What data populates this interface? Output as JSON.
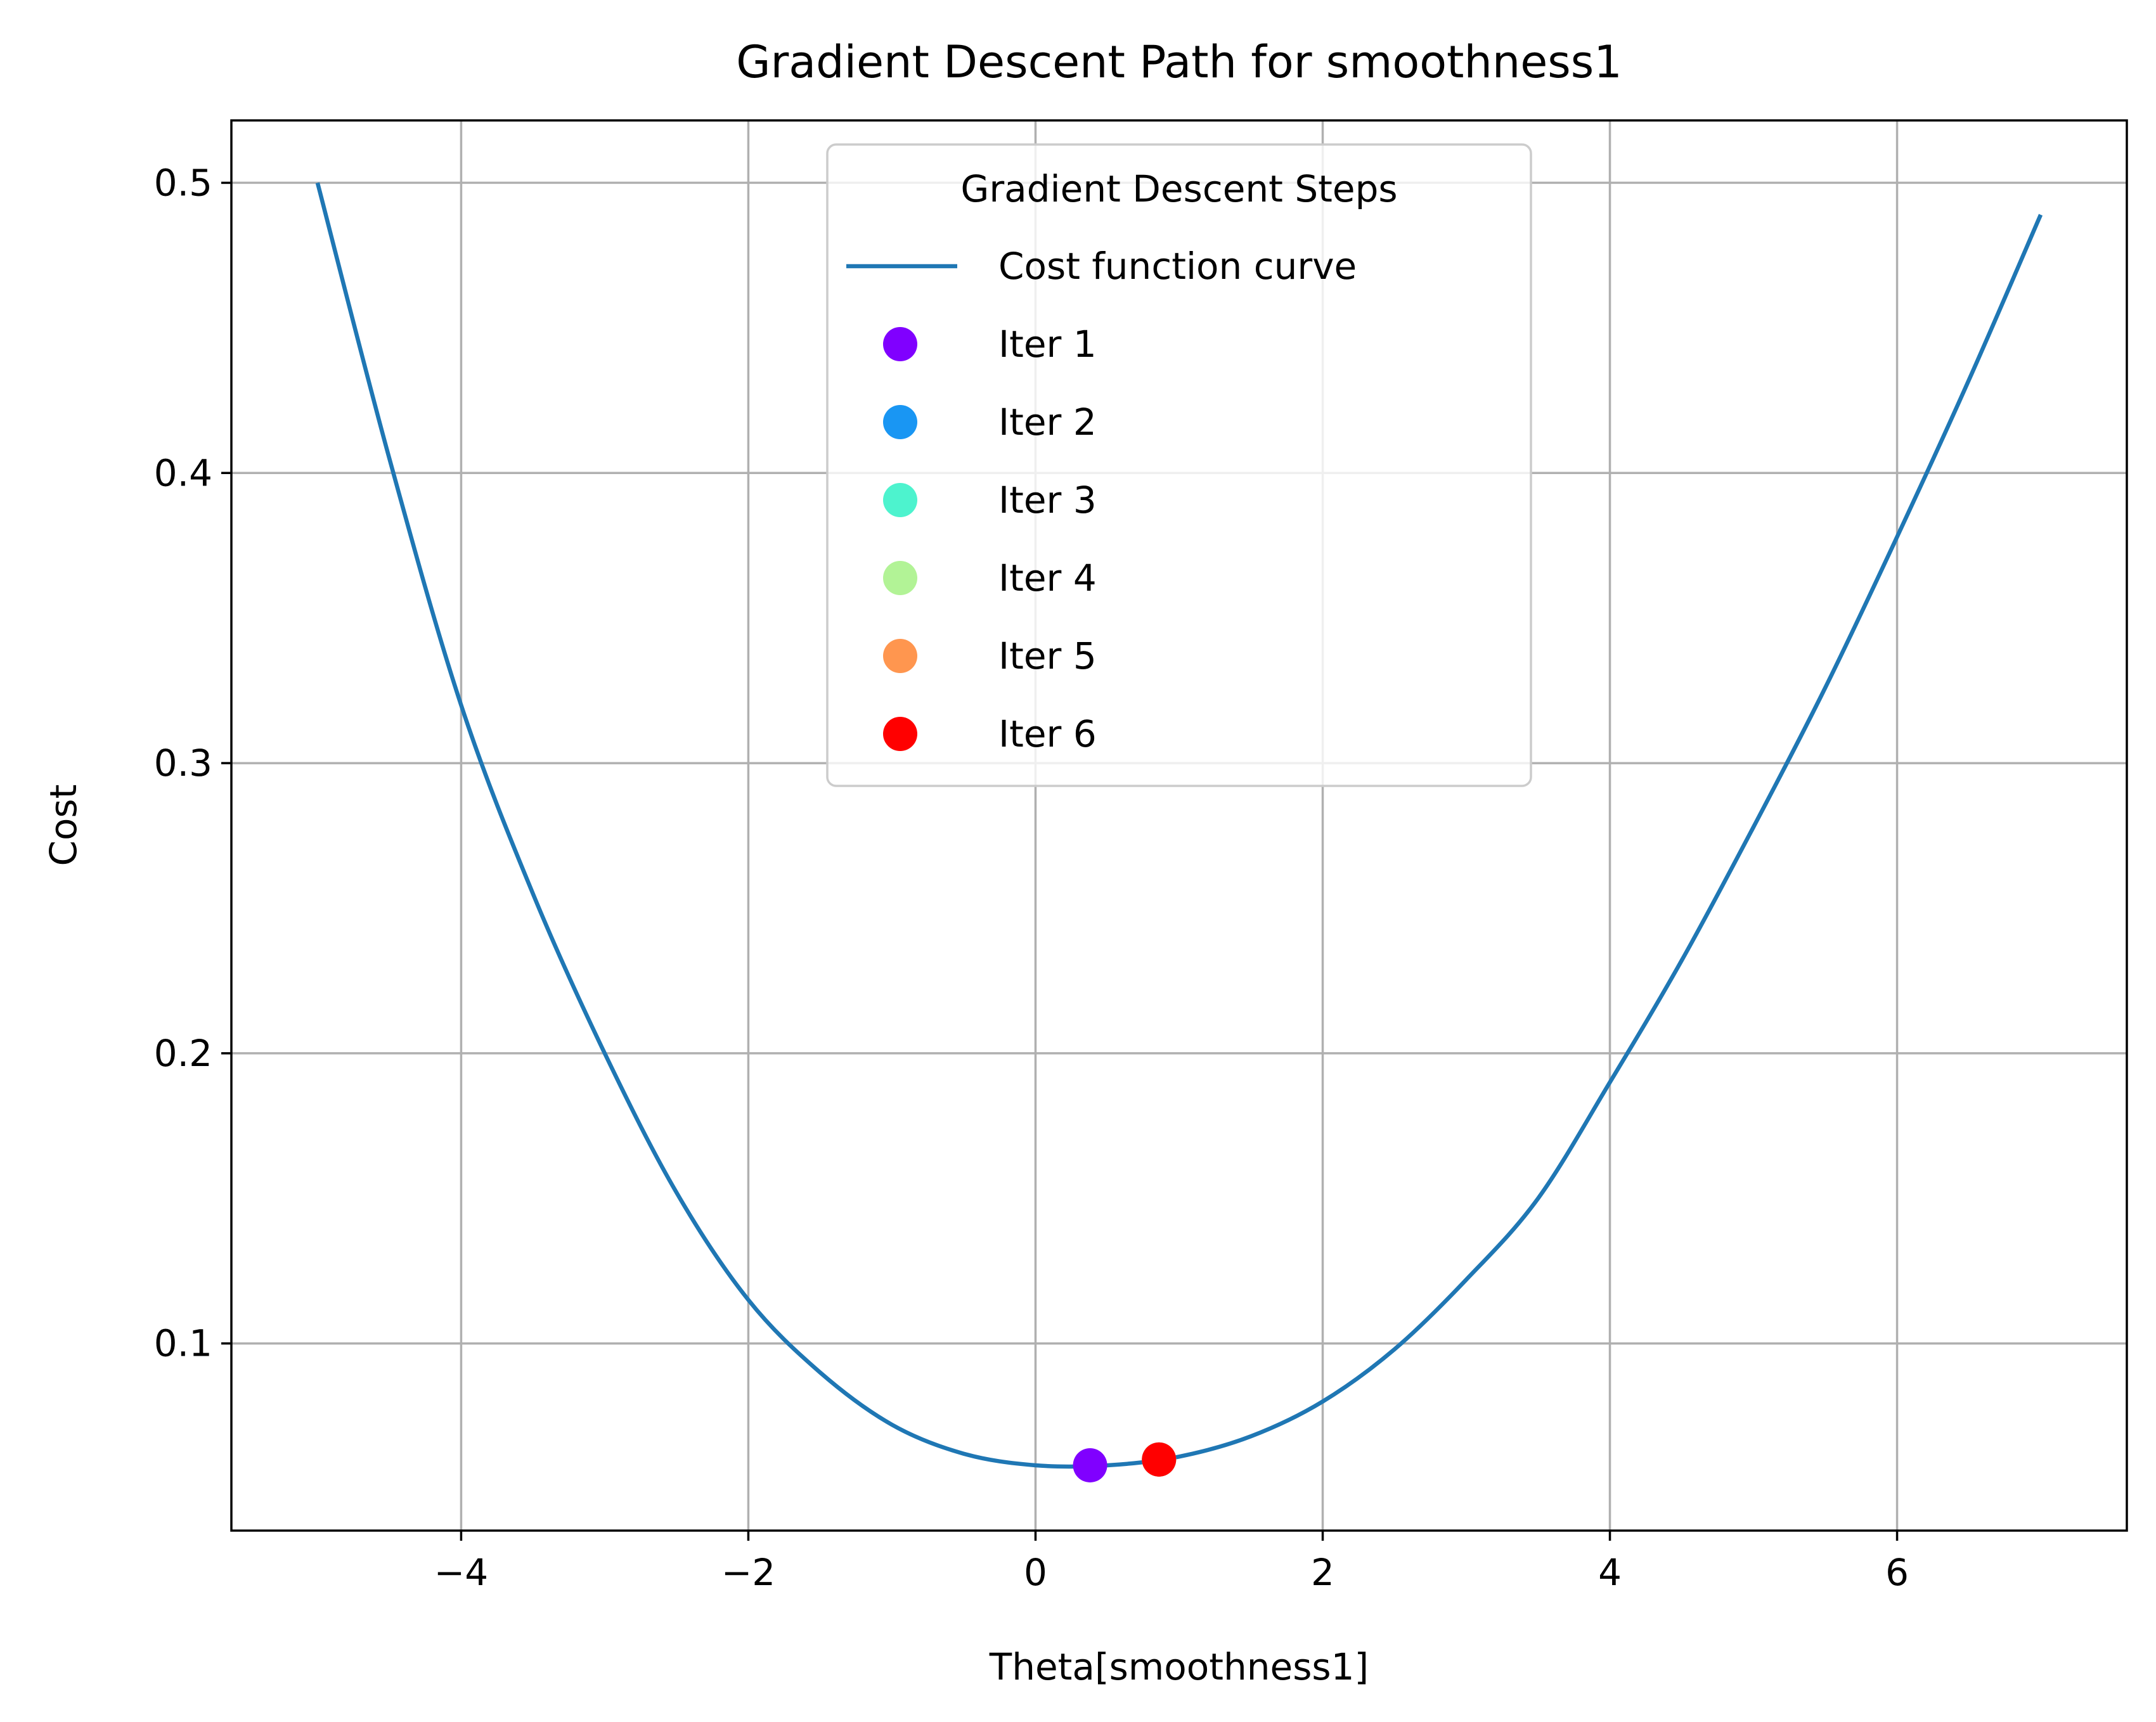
{
  "chart_data": {
    "type": "line",
    "title": "Gradient Descent Path for smoothness1",
    "xlabel": "Theta[smoothness1]",
    "ylabel": "Cost",
    "xlim": [
      -5.6,
      7.6
    ],
    "ylim": [
      0.0355,
      0.5215
    ],
    "xticks": [
      -4,
      -2,
      0,
      2,
      4,
      6
    ],
    "xtick_labels": [
      "−4",
      "−2",
      "0",
      "2",
      "4",
      "6"
    ],
    "yticks": [
      0.1,
      0.2,
      0.3,
      0.4,
      0.5
    ],
    "ytick_labels": [
      "0.1",
      "0.2",
      "0.3",
      "0.4",
      "0.5"
    ],
    "grid": true,
    "legend": {
      "title": "Gradient Descent Steps",
      "placement": "upper-center"
    },
    "series": [
      {
        "name": "Cost function curve",
        "kind": "line",
        "color": "#1f77b4",
        "x": [
          -5.0,
          -4.5,
          -4.0,
          -3.5,
          -3.0,
          -2.5,
          -2.0,
          -1.5,
          -1.0,
          -0.5,
          0.0,
          0.5,
          1.0,
          1.5,
          2.0,
          2.5,
          3.0,
          3.5,
          4.0,
          4.5,
          5.0,
          5.5,
          6.0,
          6.5,
          7.0
        ],
        "y": [
          0.5,
          0.405,
          0.32,
          0.255,
          0.2,
          0.152,
          0.115,
          0.09,
          0.072,
          0.062,
          0.058,
          0.058,
          0.061,
          0.068,
          0.08,
          0.098,
          0.122,
          0.15,
          0.19,
          0.232,
          0.278,
          0.326,
          0.378,
          0.432,
          0.489
        ]
      }
    ],
    "points": [
      {
        "name": "Iter 1",
        "x": 0.38,
        "y": 0.058,
        "color": "#8000ff"
      },
      {
        "name": "Iter 2",
        "x": 0.86,
        "y": 0.06,
        "color": "#1996f3"
      },
      {
        "name": "Iter 3",
        "x": 0.86,
        "y": 0.06,
        "color": "#4df3ce"
      },
      {
        "name": "Iter 4",
        "x": 0.86,
        "y": 0.06,
        "color": "#b2f396"
      },
      {
        "name": "Iter 5",
        "x": 0.86,
        "y": 0.06,
        "color": "#ff964f"
      },
      {
        "name": "Iter 6",
        "x": 0.86,
        "y": 0.06,
        "color": "#ff0000"
      }
    ]
  }
}
